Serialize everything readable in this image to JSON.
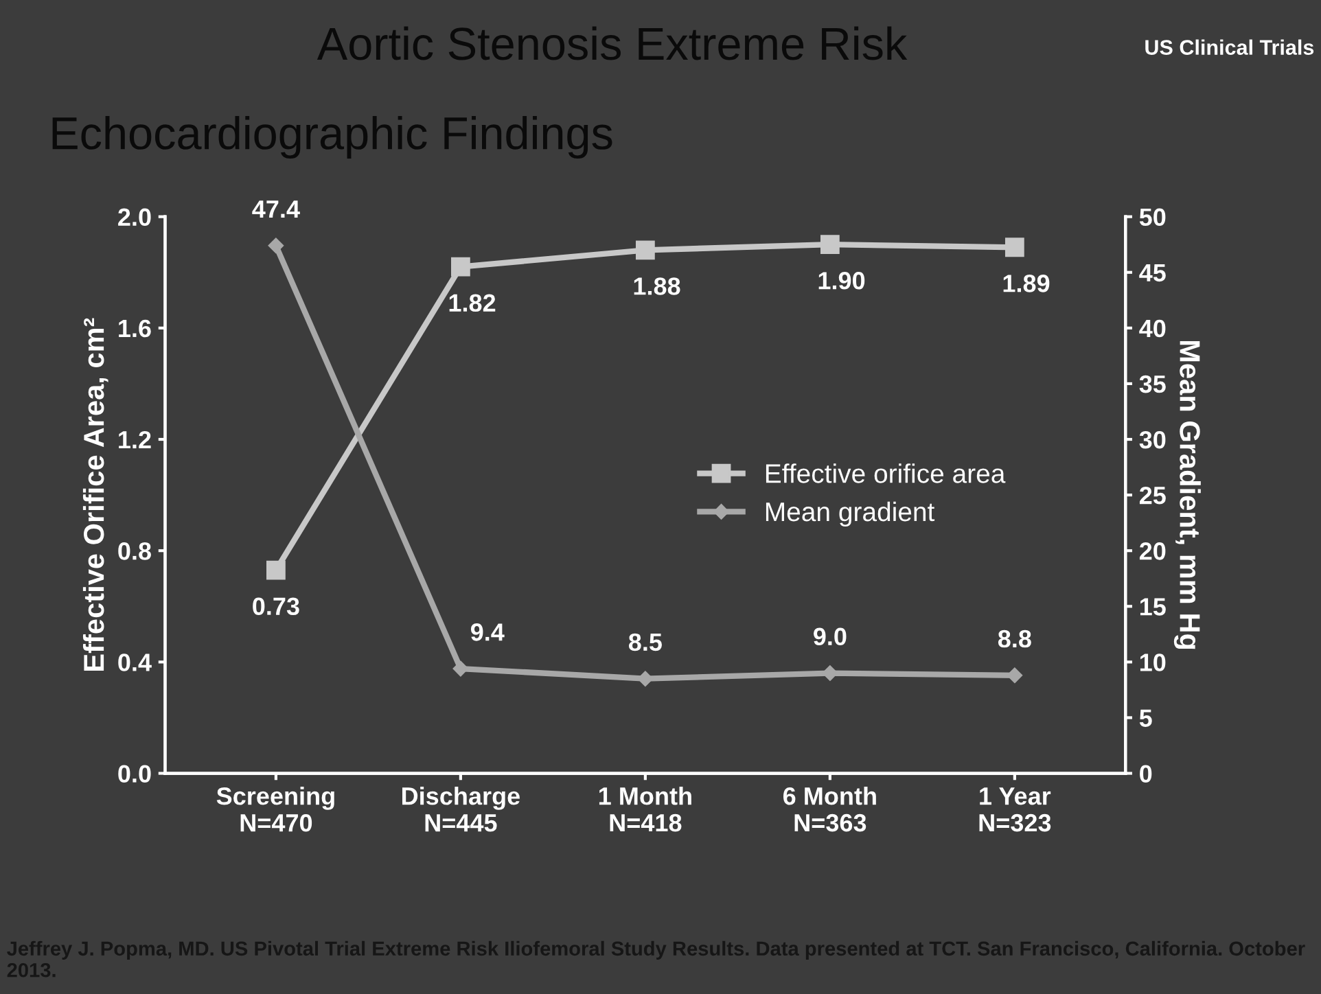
{
  "chart_data": {
    "type": "line",
    "title": "Aortic Stenosis Extreme Risk",
    "subtitle": "Echocardiographic Findings",
    "ylabel": "Effective Orifice Area, cm²",
    "y2label": "Mean Gradient, mm Hg",
    "categories": [
      "Screening\nN=470",
      "Discharge\nN=445",
      "1 Month\nN=418",
      "6 Month\nN=363",
      "1 Year\nN=323"
    ],
    "series": [
      {
        "name": "Effective orifice area",
        "color": "#c8c8c8",
        "marker": "square",
        "values": [
          0.73,
          1.82,
          1.88,
          1.9,
          1.89
        ],
        "value_labels": [
          "0.73",
          "1.82",
          "1.88",
          "1.90",
          "1.89"
        ]
      },
      {
        "name": "Mean gradient",
        "color": "#a8a8a8",
        "marker": "diamond",
        "axis": "y2",
        "values": [
          47.4,
          9.4,
          8.5,
          9.0,
          8.8
        ],
        "value_labels": [
          "47.4",
          "9.4",
          "8.5",
          "9.0",
          "8.8"
        ]
      }
    ],
    "ylim": [
      0,
      2.0
    ],
    "yticks": [
      {
        "value": 0,
        "label": "0.0"
      },
      {
        "value": 0.4,
        "label": "0.4"
      },
      {
        "value": 0.8,
        "label": "0.8"
      },
      {
        "value": 1.2,
        "label": "1.2"
      },
      {
        "value": 1.6,
        "label": "1.6"
      },
      {
        "value": 2.0,
        "label": "2.0"
      }
    ],
    "y2lim": [
      0,
      50
    ],
    "y2ticks": [
      0,
      5,
      10,
      15,
      20,
      25,
      30,
      35,
      40,
      45,
      50
    ],
    "legend": "center right",
    "grid": false,
    "annotations": [
      "US Clinical Trials",
      "Jeffrey J. Popma, MD. US Pivotal Trial Extreme Risk Iliofemoral Study Results. Data presented at TCT. San Francisco, California. October 2013."
    ]
  }
}
